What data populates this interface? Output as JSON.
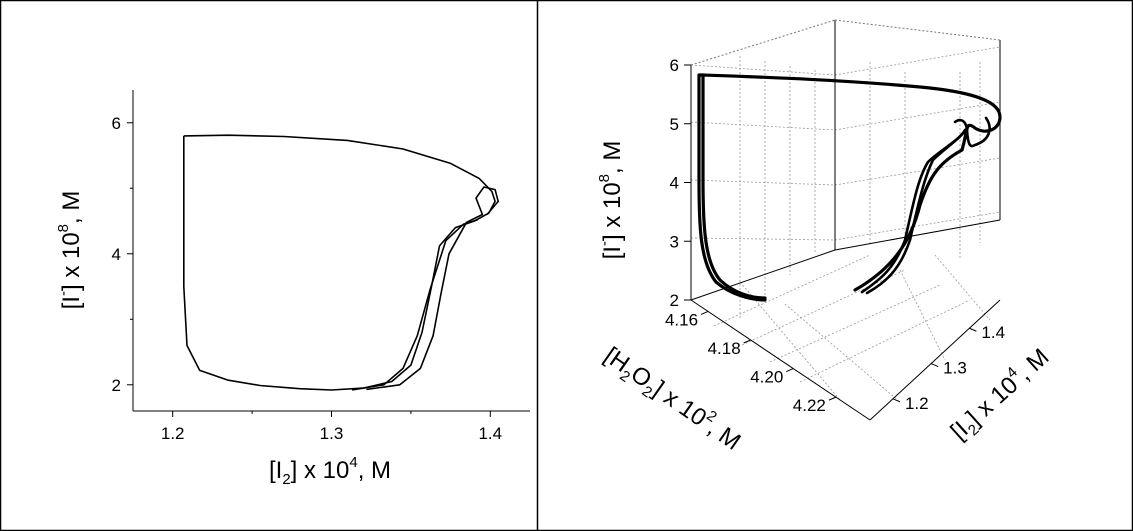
{
  "chart_data": [
    {
      "type": "line",
      "panel": "left",
      "xlabel": {
        "pre": "[I",
        "sub": "2",
        "mid": "] x 10",
        "sup": "4",
        "post": ", M"
      },
      "ylabel": {
        "pre": "[I",
        "sup": "-",
        "mid": "] x 10",
        "sup2": "8",
        "post": ", M"
      },
      "xlim": [
        1.175,
        1.425
      ],
      "ylim": [
        1.6,
        6.5
      ],
      "x_ticks": [
        "1.2",
        "1.3",
        "1.4"
      ],
      "y_ticks": [
        "2",
        "4",
        "6"
      ],
      "grid": false,
      "series": [
        {
          "points": [
            [
              1.207,
              5.8
            ],
            [
              1.235,
              5.81
            ],
            [
              1.27,
              5.79
            ],
            [
              1.31,
              5.73
            ],
            [
              1.345,
              5.6
            ],
            [
              1.375,
              5.38
            ],
            [
              1.393,
              5.15
            ],
            [
              1.401,
              4.95
            ],
            [
              1.403,
              4.8
            ],
            [
              1.399,
              4.62
            ],
            [
              1.39,
              4.5
            ],
            [
              1.378,
              4.4
            ],
            [
              1.368,
              4.12
            ],
            [
              1.363,
              3.5
            ],
            [
              1.357,
              2.8
            ],
            [
              1.35,
              2.3
            ],
            [
              1.338,
              2.05
            ],
            [
              1.32,
              1.95
            ],
            [
              1.3,
              1.92
            ],
            [
              1.28,
              1.94
            ],
            [
              1.255,
              1.99
            ],
            [
              1.235,
              2.07
            ],
            [
              1.217,
              2.22
            ],
            [
              1.209,
              2.6
            ],
            [
              1.207,
              3.5
            ],
            [
              1.207,
              5.8
            ]
          ]
        },
        {
          "points": [
            [
              1.398,
              4.6
            ],
            [
              1.405,
              4.8
            ],
            [
              1.403,
              4.98
            ],
            [
              1.396,
              5.02
            ],
            [
              1.391,
              4.85
            ],
            [
              1.395,
              4.6
            ],
            [
              1.385,
              4.48
            ],
            [
              1.374,
              4.0
            ],
            [
              1.369,
              3.4
            ],
            [
              1.364,
              2.75
            ],
            [
              1.356,
              2.25
            ],
            [
              1.343,
              2.0
            ],
            [
              1.322,
              1.93
            ]
          ]
        },
        {
          "points": [
            [
              1.392,
              4.52
            ],
            [
              1.383,
              4.45
            ],
            [
              1.372,
              4.2
            ],
            [
              1.362,
              3.45
            ],
            [
              1.354,
              2.75
            ],
            [
              1.345,
              2.25
            ],
            [
              1.333,
              2.0
            ],
            [
              1.313,
              1.92
            ]
          ]
        }
      ]
    },
    {
      "type": "line",
      "panel": "right-3d",
      "xlabel": {
        "pre": "[I",
        "sub": "2",
        "mid": "] x 10",
        "sup": "4",
        "post": ", M"
      },
      "ylabel": {
        "pre": "[H",
        "sub": "2",
        "mid": "O",
        "sub2": "2",
        "mid2": "] x 10",
        "sup": "2",
        "post": ", M"
      },
      "zlabel": {
        "pre": "[I",
        "sup": "-",
        "mid": "] x 10",
        "sup2": "8",
        "post": ", M"
      },
      "xlim": [
        1.15,
        1.45
      ],
      "ylim": [
        4.15,
        4.23
      ],
      "zlim": [
        2,
        6
      ],
      "x_ticks": [
        "1.2",
        "1.3",
        "1.4"
      ],
      "y_ticks": [
        "4.16",
        "4.18",
        "4.20",
        "4.22"
      ],
      "z_ticks": [
        "2",
        "3",
        "4",
        "5",
        "6"
      ],
      "grid": true
    }
  ]
}
